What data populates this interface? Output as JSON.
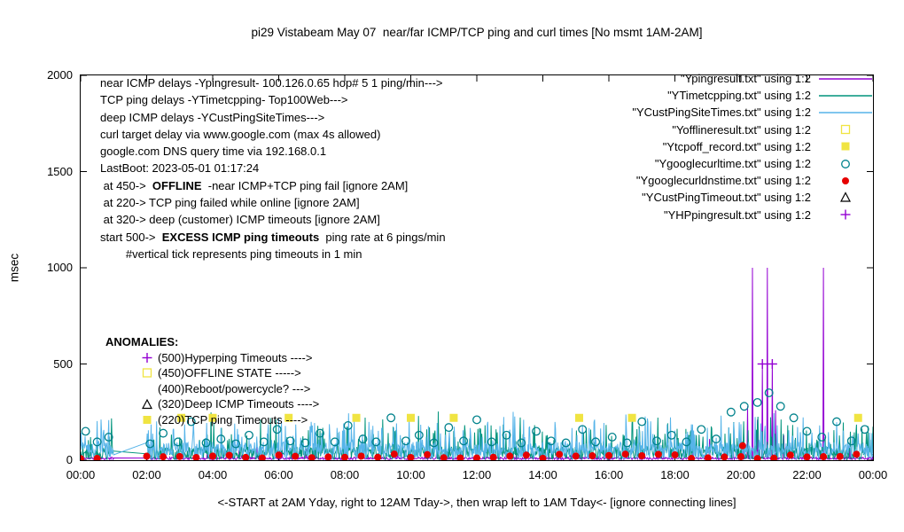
{
  "title": "pi29 Vistabeam May 07  near/far ICMP/TCP ping and curl times [No msmt 1AM-2AM]",
  "axes": {
    "ylabel": "msec",
    "xlabel": "<-START at 2AM Yday, right to 12AM Tday->, then wrap left to 1AM Tday<- [ignore connecting lines]"
  },
  "annotations": {
    "lines": [
      {
        "pre": "near ICMP delays -Ypingresult- 100.126.0.65 hop# 5 1 ping/min--->"
      },
      {
        "pre": "TCP ping delays -YTimetcpping- Top100Web--->"
      },
      {
        "pre": "deep ICMP delays -YCustPingSiteTimes--->"
      },
      {
        "pre": "curl target delay via www.google.com (max 4s allowed)"
      },
      {
        "pre": "google.com DNS query time via 192.168.0.1"
      },
      {
        "pre": "LastBoot: 2023-05-01 01:17:24"
      },
      {
        "pre": " at 450->  ",
        "bold": "OFFLINE",
        "post": "  -near ICMP+TCP ping fail [ignore 2AM]"
      },
      {
        "pre": " at 220-> TCP ping failed while online [ignore 2AM]"
      },
      {
        "pre": " at 320-> deep (customer) ICMP timeouts [ignore 2AM]"
      },
      {
        "pre": "start 500->  ",
        "bold": "EXCESS ICMP ping timeouts",
        "post": "  ping rate at 6 pings/min"
      },
      {
        "pre": "        #vertical tick represents ping timeouts in 1 min"
      }
    ]
  },
  "anomalies": {
    "header": "ANOMALIES:",
    "items": [
      {
        "marker": "plus",
        "color": "#9400d3",
        "label": "(500)Hyperping Timeouts ---->"
      },
      {
        "marker": "open-square",
        "color": "#f0e442",
        "label": "(450)OFFLINE STATE ----->"
      },
      {
        "marker": "none",
        "color": "#000000",
        "label": "(400)Reboot/powercycle? --->"
      },
      {
        "marker": "open-triangle",
        "color": "#000000",
        "label": "(320)Deep ICMP Timeouts ---->"
      },
      {
        "marker": "filled-square",
        "color": "#f0e442",
        "label": "(220)TCP ping Timeouts ---->"
      }
    ]
  },
  "legend": {
    "entries": [
      {
        "label": "\"Ypingresult.txt\" using 1:2",
        "sample": "line",
        "color": "#9400d3"
      },
      {
        "label": "\"YTimetcpping.txt\" using 1:2",
        "sample": "line",
        "color": "#00947c"
      },
      {
        "label": "\"YCustPingSiteTimes.txt\" using 1:2",
        "sample": "line",
        "color": "#56b4e9"
      },
      {
        "label": "\"Yofflineresult.txt\" using 1:2",
        "sample": "open-square",
        "color": "#f0e442"
      },
      {
        "label": "\"Ytcpoff_record.txt\" using 1:2",
        "sample": "filled-square",
        "color": "#f0e442"
      },
      {
        "label": "\"Ygooglecurltime.txt\" using 1:2",
        "sample": "open-circle",
        "color": "#00828c"
      },
      {
        "label": "\"Ygooglecurldnstime.txt\" using 1:2",
        "sample": "filled-circle",
        "color": "#e60000"
      },
      {
        "label": "\"YCustPingTimeout.txt\" using 1:2",
        "sample": "open-triangle",
        "color": "#000000"
      },
      {
        "label": "\"YHPpingresult.txt\" using 1:2",
        "sample": "plus",
        "color": "#9400d3"
      }
    ]
  },
  "chart_data": {
    "type": "line",
    "title": "pi29 Vistabeam May 07  near/far ICMP/TCP ping and curl times [No msmt 1AM-2AM]",
    "x_axis": {
      "unit": "hour_of_day",
      "range_hours": [
        0,
        24
      ],
      "tick_hours": [
        0,
        2,
        4,
        6,
        8,
        10,
        12,
        14,
        16,
        18,
        20,
        22,
        24
      ],
      "tick_labels": [
        "00:00",
        "02:00",
        "04:00",
        "06:00",
        "08:00",
        "10:00",
        "12:00",
        "14:00",
        "16:00",
        "18:00",
        "20:00",
        "22:00",
        "00:00"
      ]
    },
    "y_axis": {
      "label": "msec",
      "range": [
        0,
        2000
      ],
      "ticks": [
        0,
        500,
        1000,
        1500,
        2000
      ]
    },
    "gap_no_msmt_hours": [
      1,
      2
    ],
    "series": [
      {
        "name": "Ypingresult.txt",
        "style": "line",
        "color": "#9400d3",
        "samples": 1440,
        "seed": 11,
        "base": [
          3,
          16
        ],
        "spike": {
          "prob": 0.012,
          "range": [
            18,
            80
          ]
        },
        "events": [
          [
            4.8,
            55
          ],
          [
            9.6,
            60
          ],
          [
            13.2,
            70
          ],
          [
            18.55,
            95
          ],
          [
            19.05,
            110
          ],
          [
            20.2,
            280
          ],
          [
            20.35,
            1000
          ],
          [
            20.5,
            210
          ],
          [
            20.65,
            500
          ],
          [
            20.8,
            1000
          ],
          [
            20.95,
            520
          ],
          [
            21.05,
            260
          ],
          [
            21.3,
            130
          ],
          [
            22.5,
            1000
          ],
          [
            23.3,
            90
          ]
        ]
      },
      {
        "name": "YTimetcpping.txt",
        "style": "line",
        "color": "#00947c",
        "samples": 1440,
        "seed": 22,
        "base": [
          2,
          70
        ],
        "spike": {
          "prob": 0.12,
          "range": [
            70,
            185
          ]
        },
        "rare": {
          "prob": 0.018,
          "range": [
            185,
            260
          ]
        }
      },
      {
        "name": "YCustPingSiteTimes.txt",
        "style": "line",
        "color": "#56b4e9",
        "samples": 1440,
        "seed": 33,
        "base": [
          5,
          95
        ],
        "spike": {
          "prob": 0.1,
          "range": [
            95,
            200
          ]
        },
        "rare": {
          "prob": 0.012,
          "range": [
            200,
            255
          ]
        }
      },
      {
        "name": "Yofflineresult.txt",
        "style": "open-square",
        "color": "#f0e442",
        "points": []
      },
      {
        "name": "Ytcpoff_record.txt",
        "style": "filled-square",
        "color": "#f0e442",
        "points": [
          [
            3.05,
            220
          ],
          [
            4.0,
            220
          ],
          [
            6.3,
            220
          ],
          [
            8.35,
            220
          ],
          [
            10.0,
            220
          ],
          [
            11.3,
            220
          ],
          [
            15.1,
            220
          ],
          [
            16.7,
            220
          ],
          [
            23.55,
            220
          ]
        ]
      },
      {
        "name": "Ygooglecurltime.txt",
        "style": "open-circle",
        "color": "#00828c",
        "points": [
          [
            0.15,
            150
          ],
          [
            0.5,
            95
          ],
          [
            0.85,
            120
          ],
          [
            2.1,
            85
          ],
          [
            2.5,
            140
          ],
          [
            2.95,
            95
          ],
          [
            3.35,
            200
          ],
          [
            3.8,
            90
          ],
          [
            4.25,
            110
          ],
          [
            4.7,
            85
          ],
          [
            5.1,
            130
          ],
          [
            5.55,
            95
          ],
          [
            5.95,
            160
          ],
          [
            6.35,
            100
          ],
          [
            6.8,
            90
          ],
          [
            7.25,
            140
          ],
          [
            7.7,
            95
          ],
          [
            8.1,
            180
          ],
          [
            8.55,
            110
          ],
          [
            8.95,
            95
          ],
          [
            9.4,
            220
          ],
          [
            9.85,
            100
          ],
          [
            10.25,
            130
          ],
          [
            10.7,
            90
          ],
          [
            11.15,
            170
          ],
          [
            11.6,
            100
          ],
          [
            12.0,
            210
          ],
          [
            12.45,
            95
          ],
          [
            12.9,
            130
          ],
          [
            13.35,
            90
          ],
          [
            13.8,
            150
          ],
          [
            14.25,
            100
          ],
          [
            14.7,
            90
          ],
          [
            15.2,
            160
          ],
          [
            15.6,
            95
          ],
          [
            16.1,
            120
          ],
          [
            16.55,
            90
          ],
          [
            17.0,
            200
          ],
          [
            17.45,
            100
          ],
          [
            17.9,
            130
          ],
          [
            18.35,
            95
          ],
          [
            18.8,
            160
          ],
          [
            19.25,
            110
          ],
          [
            19.7,
            250
          ],
          [
            20.1,
            280
          ],
          [
            20.5,
            300
          ],
          [
            20.85,
            350
          ],
          [
            21.2,
            280
          ],
          [
            21.6,
            220
          ],
          [
            22.0,
            150
          ],
          [
            22.45,
            120
          ],
          [
            22.9,
            200
          ],
          [
            23.35,
            100
          ],
          [
            23.75,
            160
          ]
        ]
      },
      {
        "name": "Ygooglecurldnstime.txt",
        "style": "filled-circle",
        "color": "#e60000",
        "interval_h": 0.5,
        "value_range": [
          8,
          32
        ],
        "seed": 7,
        "events": [
          [
            20.05,
            75
          ]
        ]
      },
      {
        "name": "YCustPingTimeout.txt",
        "style": "open-triangle",
        "color": "#000000",
        "points": []
      },
      {
        "name": "YHPpingresult.txt",
        "style": "plus",
        "color": "#9400d3",
        "points": [
          [
            20.65,
            500
          ],
          [
            20.95,
            500
          ]
        ]
      }
    ]
  }
}
